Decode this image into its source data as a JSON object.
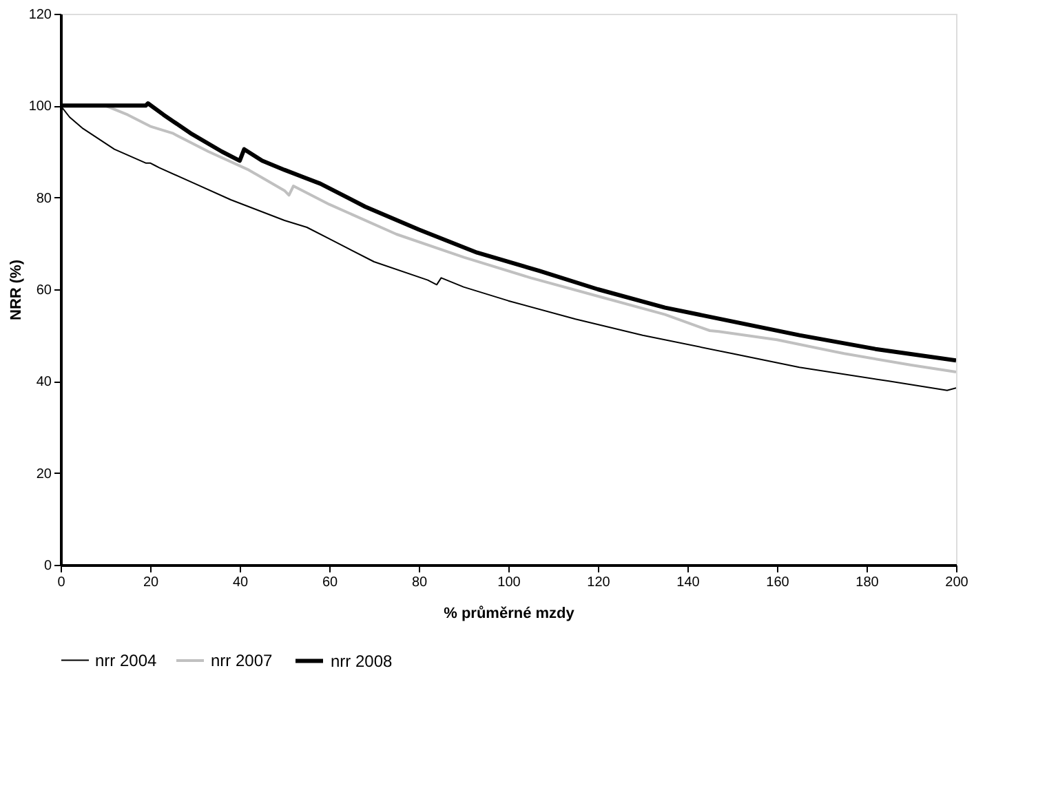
{
  "chart_data": {
    "type": "line",
    "xlabel": "% průměrné mzdy",
    "ylabel": "NRR (%)",
    "xlim": [
      0,
      200
    ],
    "ylim": [
      0,
      120
    ],
    "xticks": [
      0,
      20,
      40,
      60,
      80,
      100,
      120,
      140,
      160,
      180,
      200
    ],
    "yticks": [
      0,
      20,
      40,
      60,
      80,
      100,
      120
    ],
    "grid": false,
    "legend": "bottom",
    "line_style": "solid",
    "marker": "none",
    "series": [
      {
        "name": "nrr  2004",
        "color": "#000000",
        "x": [
          0,
          2,
          5,
          12,
          19,
          20,
          21,
          22,
          30,
          38,
          50,
          55,
          60,
          70,
          82,
          84,
          85,
          90,
          100,
          115,
          130,
          150,
          165,
          185,
          198,
          200
        ],
        "values": [
          100,
          97.5,
          95,
          90.5,
          87.5,
          87.5,
          87,
          86.5,
          83,
          79.5,
          75,
          73.5,
          71,
          66,
          62,
          61,
          62.5,
          60.5,
          57.5,
          53.5,
          50,
          46,
          43,
          40,
          38,
          38.5
        ]
      },
      {
        "name": "nrr  2007",
        "color": "#c0c0c0",
        "x": [
          0,
          10,
          15,
          20,
          25,
          33,
          42,
          50,
          51,
          52,
          60,
          75,
          90,
          105,
          120,
          135,
          145,
          147,
          160,
          175,
          190,
          200
        ],
        "values": [
          100,
          100,
          98,
          95.5,
          94,
          90,
          86,
          81.5,
          80.5,
          82.5,
          78.5,
          72,
          67,
          62.5,
          58.5,
          54.5,
          51,
          50.8,
          49,
          46,
          43.5,
          42
        ]
      },
      {
        "name": "nrr  2008",
        "color": "#000000",
        "x": [
          0,
          19,
          19.5,
          23,
          29,
          36,
          40,
          41,
          45,
          50,
          58,
          68,
          80,
          93,
          107,
          120,
          135,
          150,
          165,
          182,
          200
        ],
        "values": [
          100,
          100,
          100.5,
          98,
          94,
          90,
          88,
          90.5,
          88,
          86,
          83,
          78,
          73,
          68,
          64,
          60,
          56,
          53,
          50,
          47,
          44.5
        ]
      }
    ]
  }
}
